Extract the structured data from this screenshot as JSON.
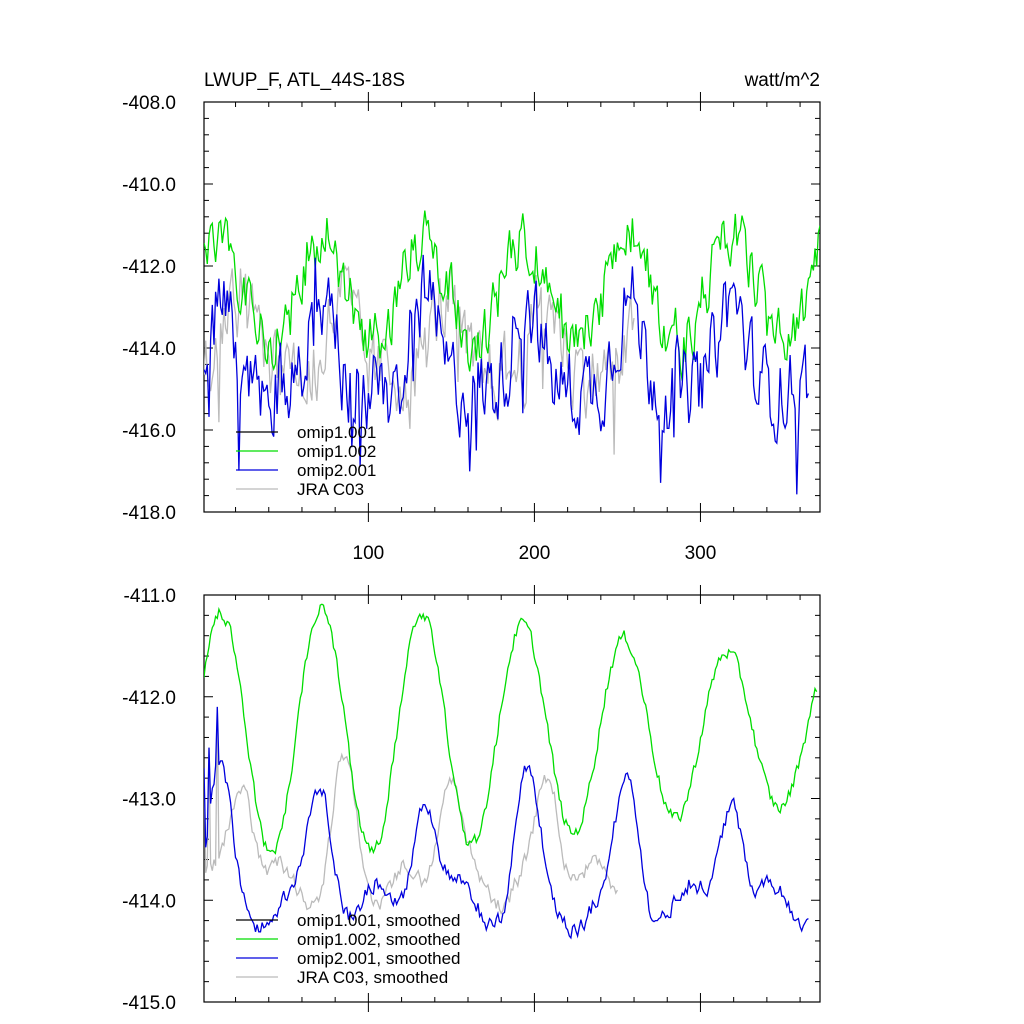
{
  "header": {
    "title": "LWUP_F, ATL_44S-18S",
    "units": "watt/m^2"
  },
  "chart_data": [
    {
      "type": "line",
      "panel": "top",
      "title": "LWUP_F, ATL_44S-18S",
      "units": "watt/m^2",
      "xlim": [
        1,
        372
      ],
      "ylim": [
        -418,
        -408
      ],
      "xticks": [
        100,
        200,
        300
      ],
      "yticks": [
        -408,
        -410,
        -412,
        -414,
        -416,
        -418
      ],
      "ytick_labels": [
        "-408.0",
        "-410.0",
        "-412.0",
        "-414.0",
        "-416.0",
        "-418.0"
      ],
      "x_start": 1,
      "x_step": 1,
      "legend": {
        "placement": "lower-left",
        "labels": [
          "omip1.001",
          "omip1.002",
          "omip2.001",
          "JRA C03"
        ]
      },
      "series": [
        {
          "name": "omip1.001",
          "color": "#000000",
          "values": []
        },
        {
          "name": "omip1.002",
          "color": "#00dd00",
          "mean": -412.6,
          "amp": 1.3,
          "noise": 0.85,
          "kind": "green",
          "n": 372
        },
        {
          "name": "omip2.001",
          "color": "#0000dd",
          "mean": -413.9,
          "amp": 1.1,
          "noise": 0.95,
          "kind": "blue",
          "n": 365
        },
        {
          "name": "JRA C03",
          "color": "#bbbbbb",
          "mean": -413.7,
          "amp": 0.9,
          "noise": 0.95,
          "kind": "grey",
          "n": 260
        }
      ]
    },
    {
      "type": "line",
      "panel": "bottom",
      "title": "",
      "xlim": [
        1,
        372
      ],
      "ylim": [
        -415,
        -411
      ],
      "xticks": [
        100,
        200,
        300
      ],
      "yticks": [
        -411,
        -412,
        -413,
        -414,
        -415
      ],
      "ytick_labels": [
        "-411.0",
        "-412.0",
        "-413.0",
        "-414.0",
        "-415.0"
      ],
      "x_start": 1,
      "x_step": 1,
      "legend": {
        "placement": "lower-left",
        "labels": [
          "omip1.001, smoothed",
          "omip1.002, smoothed",
          "omip2.001, smoothed",
          "JRA C03, smoothed"
        ]
      },
      "series": [
        {
          "name": "omip1.001, smoothed",
          "color": "#000000",
          "values": []
        },
        {
          "name": "omip1.002, smoothed",
          "color": "#00dd00",
          "kind": "green-smooth",
          "n": 370
        },
        {
          "name": "omip2.001, smoothed",
          "color": "#0000dd",
          "kind": "blue-smooth",
          "n": 365
        },
        {
          "name": "JRA C03, smoothed",
          "color": "#bbbbbb",
          "kind": "grey-smooth",
          "n": 250
        }
      ]
    }
  ]
}
